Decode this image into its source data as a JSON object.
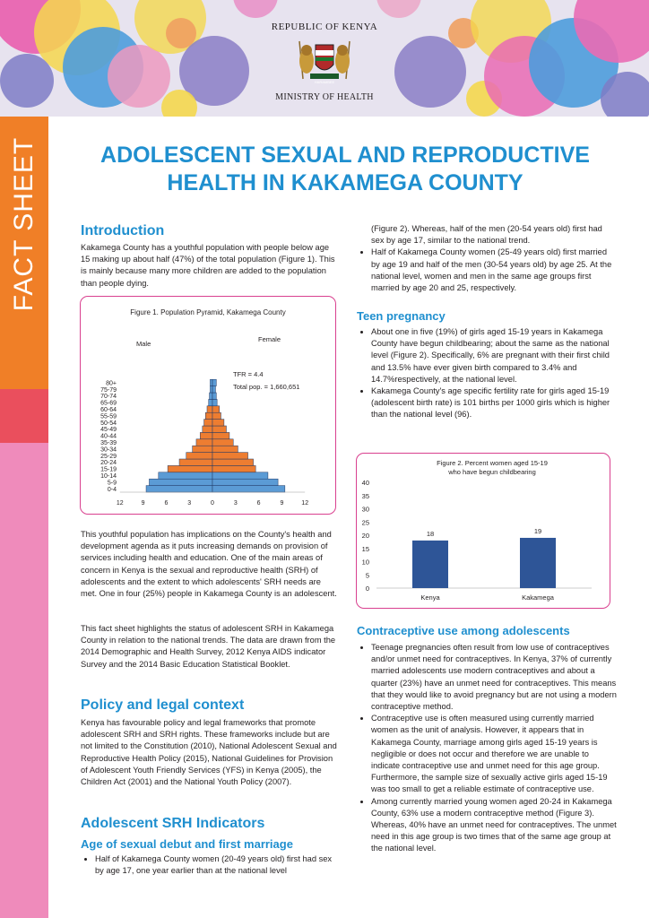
{
  "header": {
    "republic": "REPUBLIC OF KENYA",
    "ministry": "MINISTRY OF HEALTH",
    "emblem_motto": "HARAMBEE"
  },
  "sidebar": {
    "label": "FACT SHEET"
  },
  "title": "ADOLESCENT SEXUAL AND REPRODUCTIVE HEALTH IN KAKAMEGA COUNTY",
  "intro": {
    "heading": "Introduction",
    "para1": "Kakamega County has a youthful population with people below age 15 making up about half (47%) of the total population (Figure 1). This is mainly because many more children are added to the population than people dying.",
    "para2": "This youthful population has implications on the County's health and development agenda as it puts increasing demands on provision of services including health and education. One of the main areas of concern in Kenya is the sexual and reproductive health (SRH) of adolescents and the extent to which adolescents' SRH needs are met. One in four (25%) people in Kakamega County is an adolescent.",
    "para3": "This fact sheet highlights the status of adolescent SRH in Kakamega County in relation to the national trends. The data are drawn from the 2014 Demographic and Health Survey, 2012 Kenya AIDS indicator Survey and the 2014 Basic Education Statistical Booklet."
  },
  "policy": {
    "heading": "Policy and legal context",
    "para": "Kenya has favourable policy and legal frameworks that promote adolescent SRH and SRH rights. These frameworks include but are not limited to the Constitution (2010), National Adolescent Sexual and Reproductive Health Policy (2015), National Guidelines for Provision of Adolescent Youth Friendly Services (YFS) in Kenya (2005), the Children Act (2001) and the National Youth Policy (2007)."
  },
  "indicators": {
    "heading": "Adolescent SRH Indicators",
    "subheading": "Age of sexual debut and first marriage",
    "bullet1_part1": "Half of Kakamega County women (20-49 years old) first had sex by age 17, one year earlier than at the national level",
    "bullet1_part2": "(Figure 2). Whereas, half of the men (20-54 years old) first had sex by age 17, similar to the national trend.",
    "bullet2": "Half of Kakamega County women (25-49 years old) first married by age 19 and half of the men (30-54 years old) by age 25. At the national level, women and men in the same age groups first married by age 20 and 25, respectively."
  },
  "teen": {
    "heading": "Teen pregnancy",
    "bullet1": "About one in five (19%) of girls aged 15-19 years in Kakamega County have begun childbearing; about the same as the national level (Figure 2). Specifically, 6% are pregnant with their first child and 13.5% have ever given birth compared to 3.4% and 14.7%respectively, at the national level.",
    "bullet2": "Kakamega County's age specific fertility rate for girls aged 15-19 (adolescent birth rate) is 101 births per 1000 girls which is higher than the national level (96)."
  },
  "contra": {
    "heading": "Contraceptive use among adolescents",
    "bullet1": "Teenage pregnancies often result from low use of contraceptives and/or unmet need for contraceptives. In Kenya, 37% of currently married adolescents use modern contraceptives and about a quarter (23%) have an unmet need for contraceptives. This means that they would like to avoid pregnancy but are not using a modern contraceptive method.",
    "bullet2": "Contraceptive use is often measured using currently married women as the unit of analysis. However, it appears that in Kakamega County, marriage among girls aged 15-19 years is negligible or does not occur and therefore we are unable to indicate contraceptive use and unmet need for this age group. Furthermore, the sample size of sexually active girls aged 15-19 was too small to get a reliable estimate of contraceptive use.",
    "bullet3": "Among currently married young women aged 20-24 in Kakamega County, 63% use a modern contraceptive method (Figure 3). Whereas, 40% have an unmet need for contraceptives. The unmet need in this age group is two times that of the same age group at the national level."
  },
  "chart_data": [
    {
      "type": "bar",
      "subtype": "population-pyramid",
      "title": "Figure 1. Population Pyramid, Kakamega County",
      "categories": [
        "0-4",
        "5-9",
        "10-14",
        "15-19",
        "20-24",
        "25-29",
        "30-34",
        "35-39",
        "40-44",
        "45-49",
        "50-54",
        "55-59",
        "60-64",
        "65-69",
        "70-74",
        "75-79",
        "80+"
      ],
      "series": [
        {
          "name": "Male",
          "values": [
            8.6,
            8.2,
            7.0,
            5.8,
            4.3,
            3.4,
            2.6,
            2.1,
            1.6,
            1.3,
            1.1,
            0.9,
            0.7,
            0.5,
            0.4,
            0.3,
            0.3
          ]
        },
        {
          "name": "Female",
          "values": [
            9.4,
            8.5,
            7.2,
            5.6,
            5.3,
            4.6,
            3.3,
            2.7,
            2.2,
            1.8,
            1.5,
            1.1,
            0.9,
            0.6,
            0.5,
            0.4,
            0.5
          ]
        }
      ],
      "xticks": [
        "12",
        "9",
        "6",
        "3",
        "0",
        "3",
        "6",
        "9",
        "12"
      ],
      "xlim": [
        -12,
        12
      ],
      "annotations": [
        "TFR = 4.4",
        "Total pop. = 1,660,651"
      ],
      "colors": {
        "young": "#5b9bd5",
        "middle": "#ed7d31",
        "edge": "#1f3864"
      }
    },
    {
      "type": "bar",
      "title": "Figure 2. Percent women aged 15-19 who have begun childbearing",
      "title_line1": "Figure 2. Percent women aged 15-19",
      "title_line2": "who have begun childbearing",
      "categories": [
        "Kenya",
        "Kakamega"
      ],
      "values": [
        18,
        19
      ],
      "ylim": [
        0,
        40
      ],
      "yticks": [
        "0",
        "5",
        "10",
        "15",
        "20",
        "25",
        "30",
        "35",
        "40"
      ],
      "color": "#2e5597"
    }
  ]
}
